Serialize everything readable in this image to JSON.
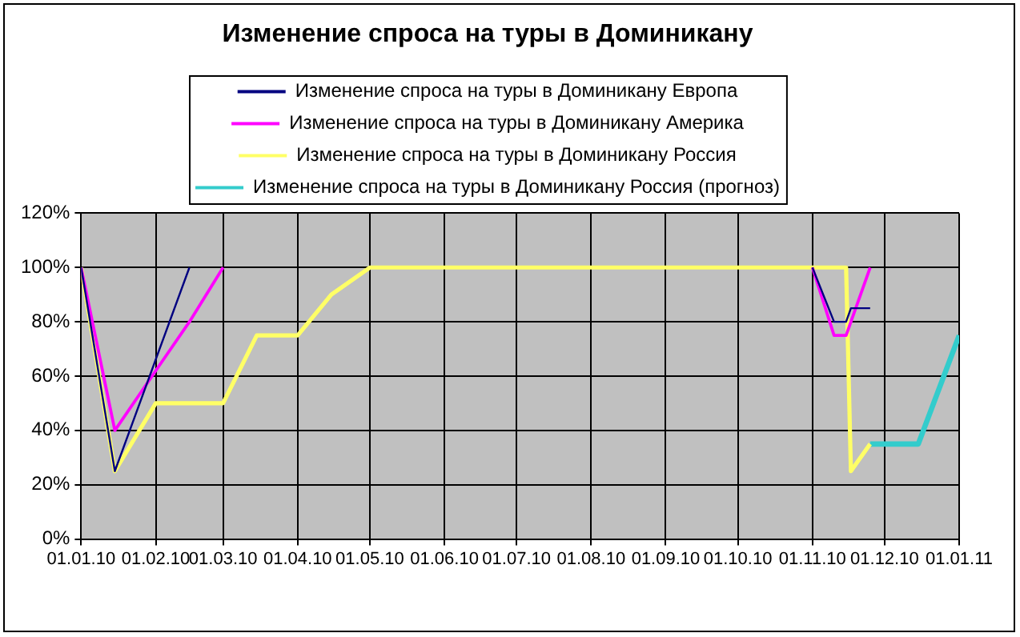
{
  "chart_data": {
    "type": "line",
    "title": "Изменение спроса на туры в Доминикану",
    "series": [
      {
        "name": "Изменение спроса на туры в Доминикану Европа",
        "color": "#000080",
        "x": [
          "2010-01-01",
          "2010-01-15",
          "2010-02-15",
          "2010-06-01",
          "2010-11-01",
          "2010-11-10",
          "2010-11-15",
          "2010-11-17",
          "2010-11-25"
        ],
        "values": [
          100,
          25,
          100,
          null,
          100,
          80,
          80,
          85,
          85
        ]
      },
      {
        "name": "Изменение спроса на туры в Доминикану Америка",
        "color": "#ff00ff",
        "x": [
          "2010-01-01",
          "2010-01-15",
          "2010-02-01",
          "2010-02-15",
          "2010-03-01",
          "2010-06-01",
          "2010-11-01",
          "2010-11-10",
          "2010-11-15",
          "2010-11-25"
        ],
        "values": [
          100,
          40,
          62,
          80,
          100,
          null,
          100,
          75,
          75,
          100
        ]
      },
      {
        "name": "Изменение спроса на туры в Доминикану Россия",
        "color": "#ffff66",
        "x": [
          "2010-01-01",
          "2010-01-15",
          "2010-02-01",
          "2010-03-01",
          "2010-03-15",
          "2010-04-01",
          "2010-04-15",
          "2010-05-01",
          "2010-11-15",
          "2010-11-17",
          "2010-11-25"
        ],
        "values": [
          100,
          25,
          50,
          50,
          75,
          75,
          90,
          100,
          100,
          25,
          35
        ]
      },
      {
        "name": "Изменение спроса на туры в Доминикану Россия (прогноз)",
        "color": "#33cccc",
        "x": [
          "2010-11-25",
          "2010-12-15",
          "2011-01-01"
        ],
        "values": [
          35,
          35,
          75
        ]
      }
    ],
    "xlim": [
      "2010-01-01",
      "2011-01-01"
    ],
    "xticks": [
      {
        "value": "2010-01-01",
        "label": "01.01.10"
      },
      {
        "value": "2010-02-01",
        "label": "01.02.10"
      },
      {
        "value": "2010-03-01",
        "label": "01.03.10"
      },
      {
        "value": "2010-04-01",
        "label": "01.04.10"
      },
      {
        "value": "2010-05-01",
        "label": "01.05.10"
      },
      {
        "value": "2010-06-01",
        "label": "01.06.10"
      },
      {
        "value": "2010-07-01",
        "label": "01.07.10"
      },
      {
        "value": "2010-08-01",
        "label": "01.08.10"
      },
      {
        "value": "2010-09-01",
        "label": "01.09.10"
      },
      {
        "value": "2010-10-01",
        "label": "01.10.10"
      },
      {
        "value": "2010-11-01",
        "label": "01.11.10"
      },
      {
        "value": "2010-12-01",
        "label": "01.12.10"
      },
      {
        "value": "2011-01-01",
        "label": "01.01.11"
      }
    ],
    "ylim": [
      0,
      120
    ],
    "yticks": [
      {
        "value": 0,
        "label": "0%"
      },
      {
        "value": 20,
        "label": "20%"
      },
      {
        "value": 40,
        "label": "40%"
      },
      {
        "value": 60,
        "label": "60%"
      },
      {
        "value": 80,
        "label": "80%"
      },
      {
        "value": 100,
        "label": "100%"
      },
      {
        "value": 120,
        "label": "120%"
      }
    ],
    "grid": true,
    "legend": "top",
    "marker": "none",
    "line_style": "solid"
  }
}
